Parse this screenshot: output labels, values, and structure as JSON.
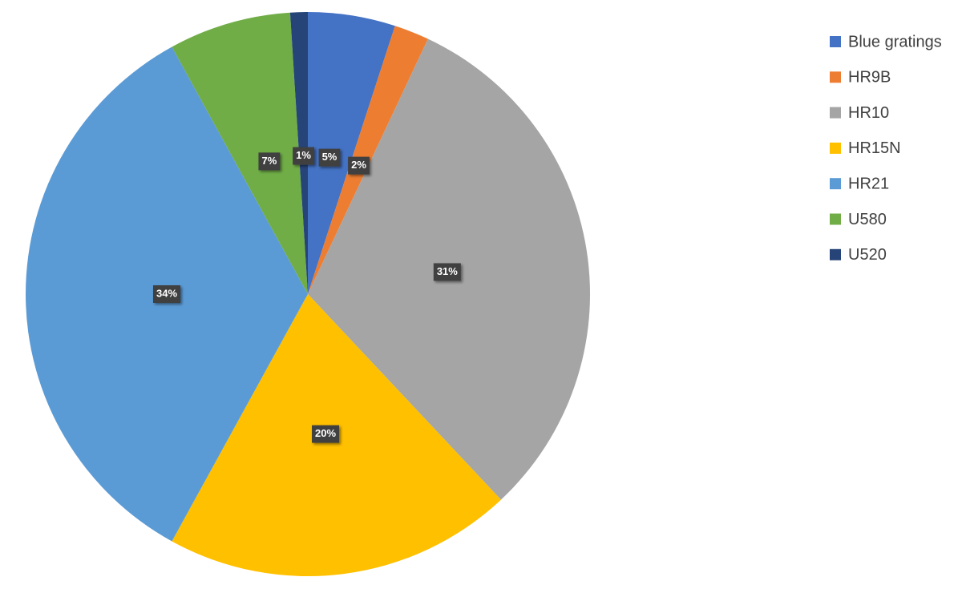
{
  "chart_data": {
    "type": "pie",
    "categories": [
      "Blue gratings",
      "HR9B",
      "HR10",
      "HR15N",
      "HR21",
      "U580",
      "U520"
    ],
    "values": [
      5,
      2,
      31,
      20,
      34,
      7,
      1
    ],
    "value_labels": [
      "5%",
      "2%",
      "31%",
      "20%",
      "34%",
      "7%",
      "1%"
    ],
    "colors": [
      "#4472c4",
      "#ed7d31",
      "#a5a5a5",
      "#ffc000",
      "#5b9bd5",
      "#70ad47",
      "#264478"
    ],
    "legend": "right"
  }
}
